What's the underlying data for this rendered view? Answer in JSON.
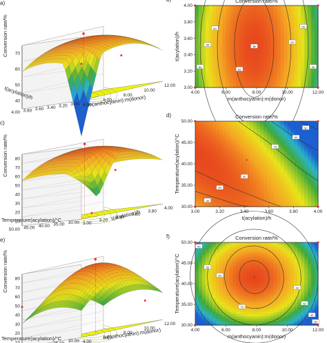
{
  "chart_data": [
    {
      "id": "a",
      "type": "surface3d",
      "panel_label": "a)",
      "title": "",
      "zlabel": "Conversion rate/%",
      "xlabel": "m(anthocyanin):m(donor)",
      "ylabel": "t(acylation)/h",
      "z_ticks": [
        "40",
        "50",
        "60",
        "70"
      ],
      "x_ticks": [
        "4.00",
        "6.00",
        "8.00",
        "10.00",
        "12.00"
      ],
      "y_ticks": [
        "3.00",
        "3.20",
        "3.40",
        "3.60",
        "3.80",
        "4.00"
      ],
      "z_range": [
        40,
        75
      ],
      "peak": {
        "x": 8.0,
        "y": 3.5,
        "z": 72
      }
    },
    {
      "id": "b",
      "type": "contour",
      "panel_label": "b)",
      "title": "Conversion rate/%",
      "xlabel": "m(anthocyanin):m(donor)",
      "ylabel": "t(acylation)/h",
      "x_ticks": [
        "4.00",
        "6.00",
        "8.00",
        "10.00",
        "12.00"
      ],
      "y_ticks": [
        "3.00",
        "3.20",
        "3.40",
        "3.60",
        "3.80",
        "4.00"
      ],
      "xlim": [
        4,
        12
      ],
      "ylim": [
        3,
        4
      ],
      "contour_labels": [
        "50",
        "55",
        "60",
        "65",
        "60",
        "55",
        "50",
        "70"
      ],
      "center_label": "5"
    },
    {
      "id": "c",
      "type": "surface3d",
      "panel_label": "c)",
      "title": "",
      "zlabel": "Conversion rate/%",
      "xlabel": "t(acylation)/h",
      "ylabel": "Temperature(acylation)/°C",
      "z_ticks": [
        "10",
        "20",
        "30",
        "40",
        "50",
        "60",
        "70",
        "80"
      ],
      "x_ticks": [
        "3.00",
        "3.20",
        "3.40",
        "3.60",
        "3.80",
        "4.00"
      ],
      "y_ticks": [
        "30.00",
        "35.00",
        "40.00",
        "45.00",
        "50.00"
      ],
      "z_range": [
        10,
        80
      ],
      "peak": {
        "x": 3.5,
        "y": 40,
        "z": 72
      }
    },
    {
      "id": "d",
      "type": "contour",
      "panel_label": "d)",
      "title": "Conversion rate/%",
      "xlabel": "t(acylation)/h",
      "ylabel": "Temperature(acylation)/°C",
      "x_ticks": [
        "3.00",
        "3.20",
        "3.40",
        "3.60",
        "3.80",
        "4.00"
      ],
      "y_ticks": [
        "30.00",
        "35.00",
        "40.00",
        "45.00",
        "50.00"
      ],
      "xlim": [
        3,
        4
      ],
      "ylim": [
        30,
        50
      ],
      "contour_labels": [
        "40",
        "50",
        "60",
        "70",
        "60",
        "50"
      ],
      "center_label": "5"
    },
    {
      "id": "e",
      "type": "surface3d",
      "panel_label": "e)",
      "title": "",
      "zlabel": "Conversion rate/%",
      "xlabel": "m(anthocyanin):m(donor)",
      "ylabel": "Temperature(acylation)/°C",
      "z_ticks": [
        "10",
        "20",
        "30",
        "40",
        "50",
        "60",
        "70",
        "80"
      ],
      "x_ticks": [
        "4.00",
        "6.00",
        "8.00",
        "10.00",
        "12.00"
      ],
      "y_ticks": [
        "30.00",
        "35.00",
        "40.00",
        "45.00",
        "50.00"
      ],
      "z_range": [
        10,
        80
      ],
      "peak": {
        "x": 8.0,
        "y": 40,
        "z": 75
      }
    },
    {
      "id": "f",
      "type": "contour",
      "panel_label": "f)",
      "title": "Conversion rate/%",
      "xlabel": "m(anthocyanin):m(donor)",
      "ylabel": "Temperature(acylation)/°C",
      "x_ticks": [
        "4.00",
        "6.00",
        "8.00",
        "10.00",
        "12.00"
      ],
      "y_ticks": [
        "30.00",
        "35.00",
        "40.00",
        "45.00",
        "50.00"
      ],
      "xlim": [
        4,
        12
      ],
      "ylim": [
        30,
        50
      ],
      "contour_labels": [
        "40",
        "50",
        "60",
        "70",
        "60",
        "50",
        "40",
        "30"
      ],
      "center_label": "5"
    }
  ],
  "colors": {
    "hot": "#e8481e",
    "warm": "#f5a623",
    "yellow": "#e8e41a",
    "green": "#3fa83a",
    "cyan": "#2bb4c9",
    "blue": "#1c5fd0",
    "floor": "#eef20a",
    "point": "#ff2a2a"
  }
}
